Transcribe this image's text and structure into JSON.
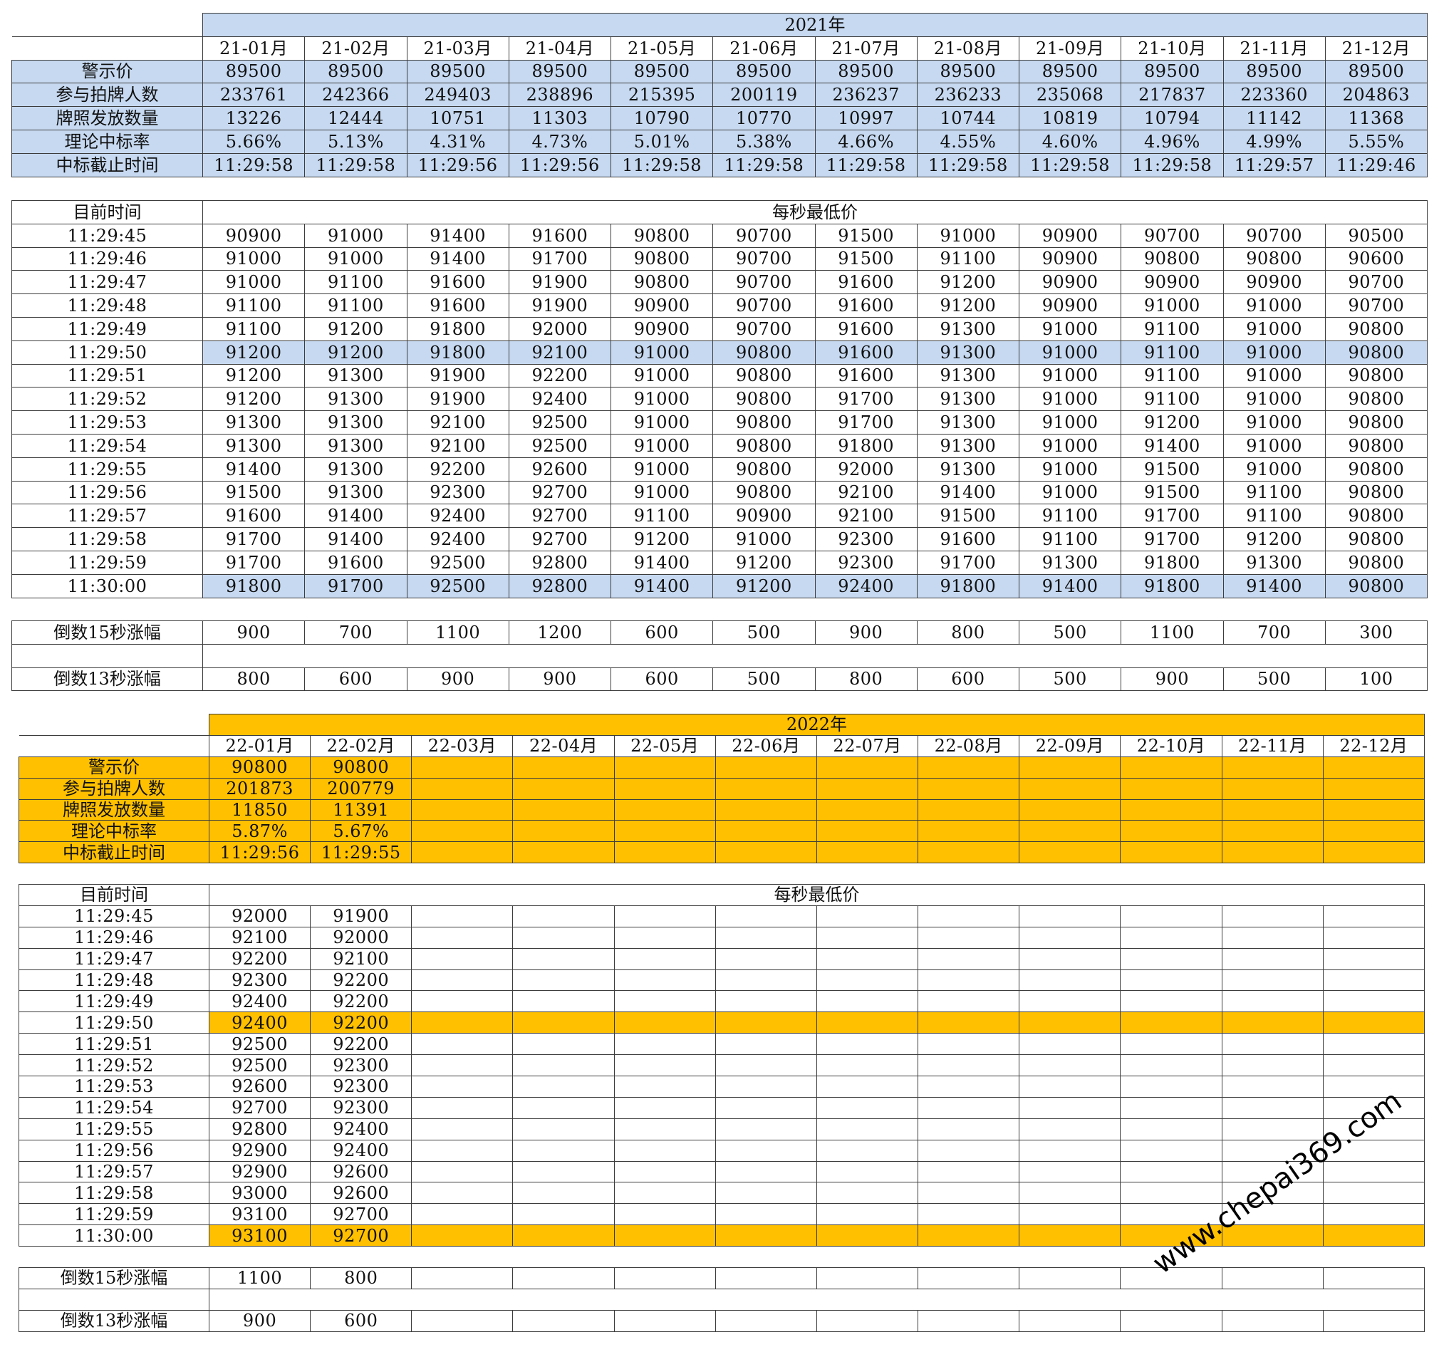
{
  "watermark": "www.chepai369.com",
  "y2021": {
    "year": "2021年",
    "months": [
      "21-01月",
      "21-02月",
      "21-03月",
      "21-04月",
      "21-05月",
      "21-06月",
      "21-07月",
      "21-08月",
      "21-09月",
      "21-10月",
      "21-11月",
      "21-12月"
    ],
    "stats": [
      {
        "label": "警示价",
        "values": [
          "89500",
          "89500",
          "89500",
          "89500",
          "89500",
          "89500",
          "89500",
          "89500",
          "89500",
          "89500",
          "89500",
          "89500"
        ]
      },
      {
        "label": "参与拍牌人数",
        "values": [
          "233761",
          "242366",
          "249403",
          "238896",
          "215395",
          "200119",
          "236237",
          "236233",
          "235068",
          "217837",
          "223360",
          "204863"
        ]
      },
      {
        "label": "牌照发放数量",
        "values": [
          "13226",
          "12444",
          "10751",
          "11303",
          "10790",
          "10770",
          "10997",
          "10744",
          "10819",
          "10794",
          "11142",
          "11368"
        ]
      },
      {
        "label": "理论中标率",
        "values": [
          "5.66%",
          "5.13%",
          "4.31%",
          "4.73%",
          "5.01%",
          "5.38%",
          "4.66%",
          "4.55%",
          "4.60%",
          "4.96%",
          "4.99%",
          "5.55%"
        ]
      },
      {
        "label": "中标截止时间",
        "values": [
          "11:29:58",
          "11:29:58",
          "11:29:56",
          "11:29:56",
          "11:29:58",
          "11:29:58",
          "11:29:58",
          "11:29:58",
          "11:29:58",
          "11:29:58",
          "11:29:57",
          "11:29:46"
        ]
      }
    ],
    "bid_header": {
      "time": "目前时间",
      "price": "每秒最低价"
    },
    "bids": [
      {
        "time": "11:29:45",
        "values": [
          "90900",
          "91000",
          "91400",
          "91600",
          "90800",
          "90700",
          "91500",
          "91000",
          "90900",
          "90700",
          "90700",
          "90500"
        ]
      },
      {
        "time": "11:29:46",
        "values": [
          "91000",
          "91000",
          "91400",
          "91700",
          "90800",
          "90700",
          "91500",
          "91100",
          "90900",
          "90800",
          "90800",
          "90600"
        ]
      },
      {
        "time": "11:29:47",
        "values": [
          "91000",
          "91100",
          "91600",
          "91900",
          "90800",
          "90700",
          "91600",
          "91200",
          "90900",
          "90900",
          "90900",
          "90700"
        ]
      },
      {
        "time": "11:29:48",
        "values": [
          "91100",
          "91100",
          "91600",
          "91900",
          "90900",
          "90700",
          "91600",
          "91200",
          "90900",
          "91000",
          "91000",
          "90700"
        ]
      },
      {
        "time": "11:29:49",
        "values": [
          "91100",
          "91200",
          "91800",
          "92000",
          "90900",
          "90700",
          "91600",
          "91300",
          "91000",
          "91100",
          "91000",
          "90800"
        ]
      },
      {
        "time": "11:29:50",
        "values": [
          "91200",
          "91200",
          "91800",
          "92100",
          "91000",
          "90800",
          "91600",
          "91300",
          "91000",
          "91100",
          "91000",
          "90800"
        ],
        "hl": true
      },
      {
        "time": "11:29:51",
        "values": [
          "91200",
          "91300",
          "91900",
          "92200",
          "91000",
          "90800",
          "91600",
          "91300",
          "91000",
          "91100",
          "91000",
          "90800"
        ]
      },
      {
        "time": "11:29:52",
        "values": [
          "91200",
          "91300",
          "91900",
          "92400",
          "91000",
          "90800",
          "91700",
          "91300",
          "91000",
          "91100",
          "91000",
          "90800"
        ]
      },
      {
        "time": "11:29:53",
        "values": [
          "91300",
          "91300",
          "92100",
          "92500",
          "91000",
          "90800",
          "91700",
          "91300",
          "91000",
          "91200",
          "91000",
          "90800"
        ]
      },
      {
        "time": "11:29:54",
        "values": [
          "91300",
          "91300",
          "92100",
          "92500",
          "91000",
          "90800",
          "91800",
          "91300",
          "91000",
          "91400",
          "91000",
          "90800"
        ]
      },
      {
        "time": "11:29:55",
        "values": [
          "91400",
          "91300",
          "92200",
          "92600",
          "91000",
          "90800",
          "92000",
          "91300",
          "91000",
          "91500",
          "91000",
          "90800"
        ]
      },
      {
        "time": "11:29:56",
        "values": [
          "91500",
          "91300",
          "92300",
          "92700",
          "91000",
          "90800",
          "92100",
          "91400",
          "91000",
          "91500",
          "91100",
          "90800"
        ]
      },
      {
        "time": "11:29:57",
        "values": [
          "91600",
          "91400",
          "92400",
          "92700",
          "91100",
          "90900",
          "92100",
          "91500",
          "91100",
          "91700",
          "91100",
          "90800"
        ]
      },
      {
        "time": "11:29:58",
        "values": [
          "91700",
          "91400",
          "92400",
          "92700",
          "91200",
          "91000",
          "92300",
          "91600",
          "91100",
          "91700",
          "91200",
          "90800"
        ]
      },
      {
        "time": "11:29:59",
        "values": [
          "91700",
          "91600",
          "92500",
          "92800",
          "91400",
          "91200",
          "92300",
          "91700",
          "91300",
          "91800",
          "91300",
          "90800"
        ]
      },
      {
        "time": "11:30:00",
        "values": [
          "91800",
          "91700",
          "92500",
          "92800",
          "91400",
          "91200",
          "92400",
          "91800",
          "91400",
          "91800",
          "91400",
          "90800"
        ],
        "hl": true
      }
    ],
    "changes": [
      {
        "label": "倒数15秒涨幅",
        "values": [
          "900",
          "700",
          "1100",
          "1200",
          "600",
          "500",
          "900",
          "800",
          "500",
          "1100",
          "700",
          "300"
        ]
      },
      {
        "label": "",
        "values": []
      },
      {
        "label": "倒数13秒涨幅",
        "values": [
          "800",
          "600",
          "900",
          "900",
          "600",
          "500",
          "800",
          "600",
          "500",
          "900",
          "500",
          "100"
        ]
      }
    ]
  },
  "y2022": {
    "year": "2022年",
    "months": [
      "22-01月",
      "22-02月",
      "22-03月",
      "22-04月",
      "22-05月",
      "22-06月",
      "22-07月",
      "22-08月",
      "22-09月",
      "22-10月",
      "22-11月",
      "22-12月"
    ],
    "stats": [
      {
        "label": "警示价",
        "values": [
          "90800",
          "90800"
        ]
      },
      {
        "label": "参与拍牌人数",
        "values": [
          "201873",
          "200779"
        ]
      },
      {
        "label": "牌照发放数量",
        "values": [
          "11850",
          "11391"
        ]
      },
      {
        "label": "理论中标率",
        "values": [
          "5.87%",
          "5.67%"
        ]
      },
      {
        "label": "中标截止时间",
        "values": [
          "11:29:56",
          "11:29:55"
        ]
      }
    ],
    "bid_header": {
      "time": "目前时间",
      "price": "每秒最低价"
    },
    "bids": [
      {
        "time": "11:29:45",
        "values": [
          "92000",
          "91900"
        ]
      },
      {
        "time": "11:29:46",
        "values": [
          "92100",
          "92000"
        ]
      },
      {
        "time": "11:29:47",
        "values": [
          "92200",
          "92100"
        ]
      },
      {
        "time": "11:29:48",
        "values": [
          "92300",
          "92200"
        ]
      },
      {
        "time": "11:29:49",
        "values": [
          "92400",
          "92200"
        ]
      },
      {
        "time": "11:29:50",
        "values": [
          "92400",
          "92200"
        ],
        "hl": true
      },
      {
        "time": "11:29:51",
        "values": [
          "92500",
          "92200"
        ]
      },
      {
        "time": "11:29:52",
        "values": [
          "92500",
          "92300"
        ]
      },
      {
        "time": "11:29:53",
        "values": [
          "92600",
          "92300"
        ]
      },
      {
        "time": "11:29:54",
        "values": [
          "92700",
          "92300"
        ]
      },
      {
        "time": "11:29:55",
        "values": [
          "92800",
          "92400"
        ]
      },
      {
        "time": "11:29:56",
        "values": [
          "92900",
          "92400"
        ]
      },
      {
        "time": "11:29:57",
        "values": [
          "92900",
          "92600"
        ]
      },
      {
        "time": "11:29:58",
        "values": [
          "93000",
          "92600"
        ]
      },
      {
        "time": "11:29:59",
        "values": [
          "93100",
          "92700"
        ]
      },
      {
        "time": "11:30:00",
        "values": [
          "93100",
          "92700"
        ],
        "hl": true
      }
    ],
    "changes": [
      {
        "label": "倒数15秒涨幅",
        "values": [
          "1100",
          "800"
        ]
      },
      {
        "label": "",
        "values": []
      },
      {
        "label": "倒数13秒涨幅",
        "values": [
          "900",
          "600"
        ]
      }
    ]
  }
}
